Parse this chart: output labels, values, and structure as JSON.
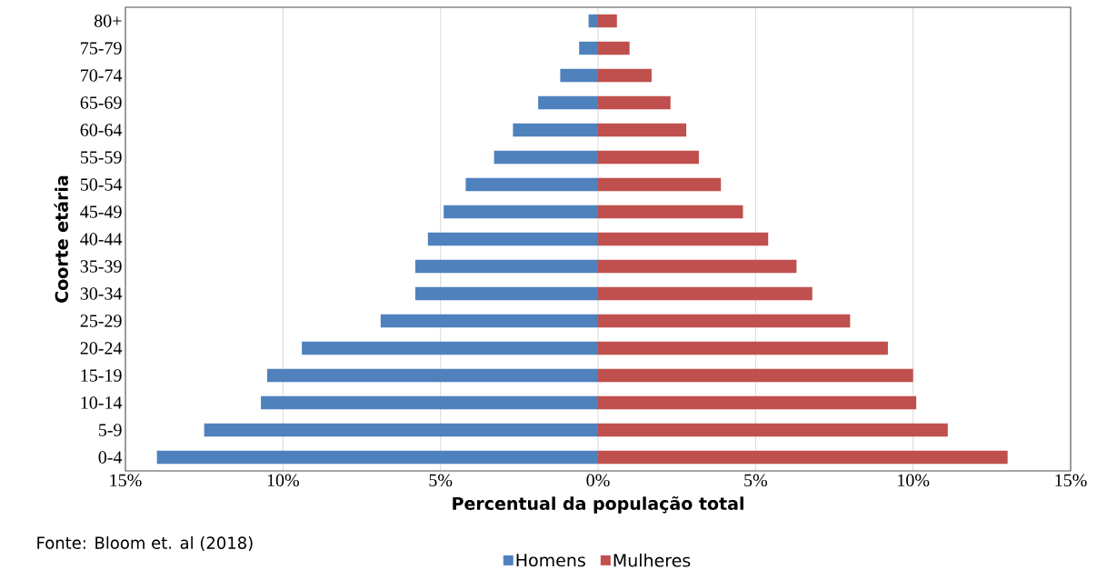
{
  "chart_data": {
    "type": "bar",
    "orientation": "horizontal",
    "stacked": true,
    "categories": [
      "80+",
      "75-79",
      "70-74",
      "65-69",
      "60-64",
      "55-59",
      "50-54",
      "45-49",
      "40-44",
      "35-39",
      "30-34",
      "25-29",
      "20-24",
      "15-19",
      "10-14",
      "5-9",
      "0-4"
    ],
    "series": [
      {
        "name": "Homens",
        "color": "#4f81bd",
        "values": [
          -0.3,
          -0.6,
          -1.2,
          -1.9,
          -2.7,
          -3.3,
          -4.2,
          -4.9,
          -5.4,
          -5.8,
          -5.8,
          -6.9,
          -9.4,
          -10.5,
          -10.7,
          -12.5,
          -14.0
        ]
      },
      {
        "name": "Mulheres",
        "color": "#c0504d",
        "values": [
          0.6,
          1.0,
          1.7,
          2.3,
          2.8,
          3.2,
          3.9,
          4.6,
          5.4,
          6.3,
          6.8,
          8.0,
          9.2,
          10.0,
          10.1,
          11.1,
          13.0
        ]
      }
    ],
    "xlim": [
      -15,
      15
    ],
    "xticks": [
      {
        "value": -15,
        "label": "15%"
      },
      {
        "value": -10,
        "label": "10%"
      },
      {
        "value": -5,
        "label": "5%"
      },
      {
        "value": 0,
        "label": "0%"
      },
      {
        "value": 5,
        "label": "5%"
      },
      {
        "value": 10,
        "label": "10%"
      },
      {
        "value": 15,
        "label": "15%"
      }
    ],
    "xlabel": "Percentual da população total",
    "ylabel": "Coorte etária",
    "grid": "x",
    "legend": "bottom",
    "annotations": [
      "Fonte: Bloom et. al (2018)"
    ]
  }
}
